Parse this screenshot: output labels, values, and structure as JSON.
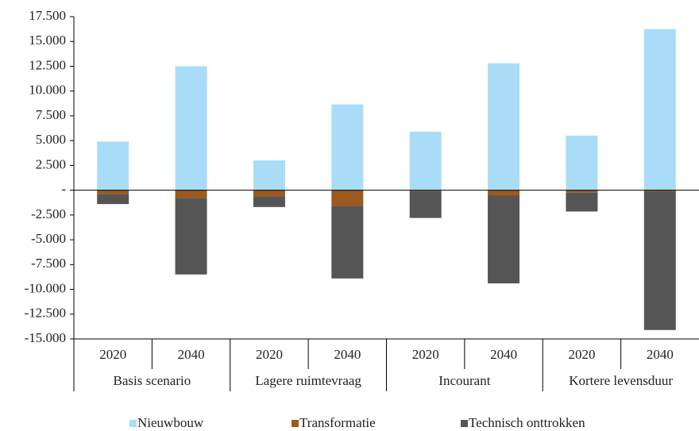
{
  "chart_data": {
    "type": "stacked-bar",
    "categories": [
      "2020",
      "2040",
      "2020",
      "2040",
      "2020",
      "2040",
      "2020",
      "2040"
    ],
    "groups": [
      "Basis scenario",
      "Lagere ruimtevraag",
      "Incourant",
      "Kortere levensduur"
    ],
    "series": [
      {
        "name": "Nieuwbouw",
        "color": "#a9ddf7",
        "values": [
          4900,
          12500,
          3000,
          8650,
          5900,
          12800,
          5500,
          16250
        ]
      },
      {
        "name": "Transformatie",
        "color": "#9c5a1f",
        "values": [
          -400,
          -800,
          -600,
          -1600,
          -100,
          -550,
          -250,
          -150
        ]
      },
      {
        "name": "Technisch onttrokken",
        "color": "#555555",
        "values": [
          -1000,
          -7700,
          -1100,
          -7300,
          -2700,
          -8850,
          -1900,
          -13950
        ]
      }
    ],
    "ylim": [
      -15000,
      17500
    ],
    "yticks": [
      {
        "value": -15000,
        "label": "-15.000"
      },
      {
        "value": -12500,
        "label": "-12.500"
      },
      {
        "value": -10000,
        "label": "-10.000"
      },
      {
        "value": -7500,
        "label": "-7.500"
      },
      {
        "value": -5000,
        "label": "-5.000"
      },
      {
        "value": -2500,
        "label": "-2.500"
      },
      {
        "value": 0,
        "label": "-"
      },
      {
        "value": 2500,
        "label": "2.500"
      },
      {
        "value": 5000,
        "label": "5.000"
      },
      {
        "value": 7500,
        "label": "7.500"
      },
      {
        "value": 10000,
        "label": "10.000"
      },
      {
        "value": 12500,
        "label": "12.500"
      },
      {
        "value": 15000,
        "label": "15.000"
      },
      {
        "value": 17500,
        "label": "17.500"
      }
    ],
    "legend": "bottom"
  }
}
